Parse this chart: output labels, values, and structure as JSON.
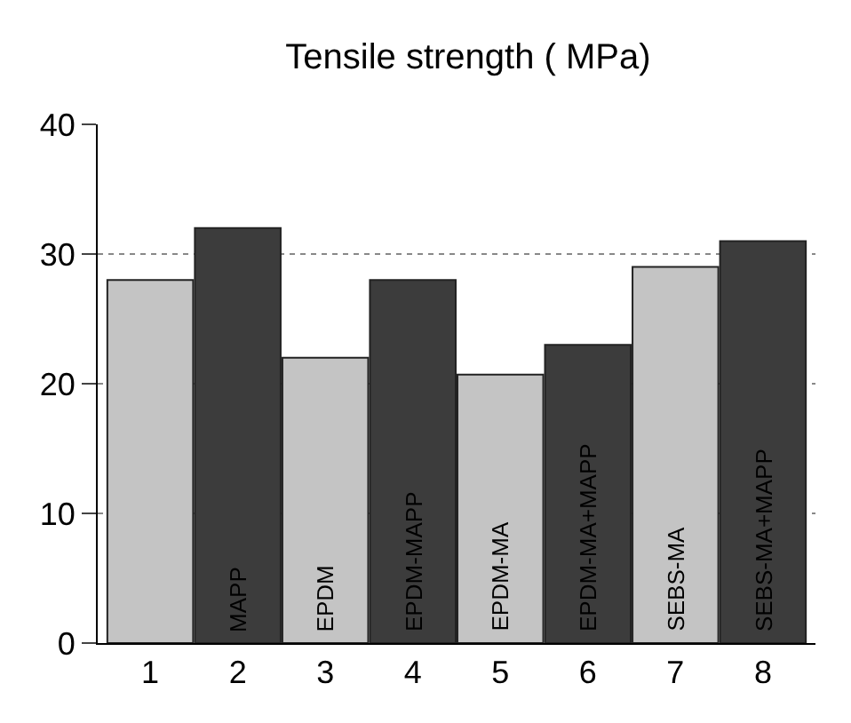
{
  "chart_data": {
    "type": "bar",
    "title": "Tensile strength ( MPa)",
    "categories": [
      "1",
      "2",
      "3",
      "4",
      "5",
      "6",
      "7",
      "8"
    ],
    "values": [
      28,
      32,
      22,
      28,
      20.7,
      23,
      29,
      31
    ],
    "colors": [
      "#c4c4c4",
      "#3c3c3c",
      "#c4c4c4",
      "#3c3c3c",
      "#c4c4c4",
      "#3c3c3c",
      "#c4c4c4",
      "#3c3c3c"
    ],
    "ylim": [
      0,
      40
    ],
    "yticks": [
      0,
      10,
      20,
      30,
      40
    ],
    "grid": "y",
    "annotations": [
      "MAPP",
      "EPDM",
      "EPDM-MAPP",
      "EPDM-MA",
      "EPDM-MA+MAPP",
      "SEBS-MA",
      "SEBS-MA+MAPP"
    ]
  }
}
